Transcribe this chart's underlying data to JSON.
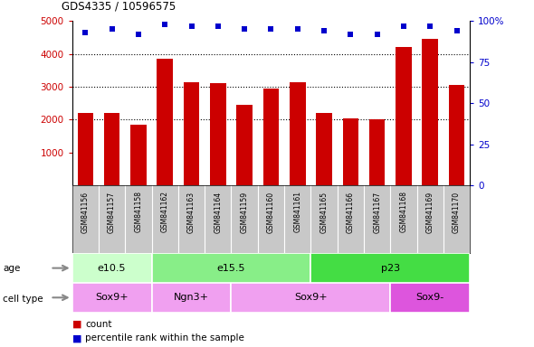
{
  "title": "GDS4335 / 10596575",
  "samples": [
    "GSM841156",
    "GSM841157",
    "GSM841158",
    "GSM841162",
    "GSM841163",
    "GSM841164",
    "GSM841159",
    "GSM841160",
    "GSM841161",
    "GSM841165",
    "GSM841166",
    "GSM841167",
    "GSM841168",
    "GSM841169",
    "GSM841170"
  ],
  "counts": [
    2200,
    2200,
    1850,
    3850,
    3150,
    3100,
    2450,
    2950,
    3150,
    2200,
    2050,
    2000,
    4200,
    4450,
    3050
  ],
  "percentile_ranks": [
    93,
    95,
    92,
    98,
    97,
    97,
    95,
    95,
    95,
    94,
    92,
    92,
    97,
    97,
    94
  ],
  "ylim_left": [
    0,
    5000
  ],
  "ylim_right": [
    0,
    100
  ],
  "yticks_left": [
    1000,
    2000,
    3000,
    4000,
    5000
  ],
  "yticks_right": [
    0,
    25,
    50,
    75,
    100
  ],
  "bar_color": "#cc0000",
  "dot_color": "#0000cc",
  "grid_color": "#000000",
  "grid_lines": [
    2000,
    3000,
    4000
  ],
  "age_groups": [
    {
      "label": "e10.5",
      "start": 0,
      "end": 3,
      "color": "#ccffcc"
    },
    {
      "label": "e15.5",
      "start": 3,
      "end": 9,
      "color": "#88ee88"
    },
    {
      "label": "p23",
      "start": 9,
      "end": 15,
      "color": "#44dd44"
    }
  ],
  "cell_type_groups": [
    {
      "label": "Sox9+",
      "start": 0,
      "end": 3,
      "color": "#f0a0f0"
    },
    {
      "label": "Ngn3+",
      "start": 3,
      "end": 6,
      "color": "#f0a0f0"
    },
    {
      "label": "Sox9+",
      "start": 6,
      "end": 12,
      "color": "#f0a0f0"
    },
    {
      "label": "Sox9-",
      "start": 12,
      "end": 15,
      "color": "#dd55dd"
    }
  ],
  "legend_count_label": "count",
  "legend_pct_label": "percentile rank within the sample",
  "xlabels_bg_color": "#c8c8c8",
  "plot_bg_color": "#ffffff",
  "age_label": "age",
  "cell_type_label": "cell type"
}
